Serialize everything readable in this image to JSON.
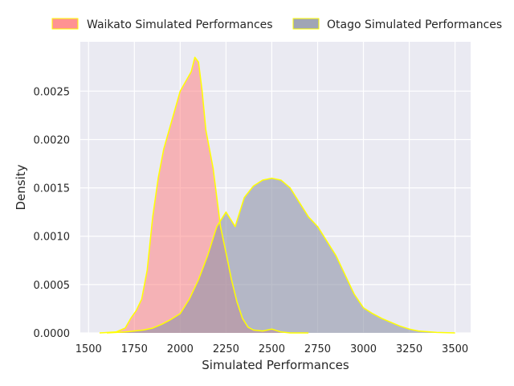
{
  "chart_data": {
    "type": "area",
    "title": "",
    "xlabel": "Simulated Performances",
    "ylabel": "Density",
    "xlim": [
      1455,
      3585
    ],
    "ylim": [
      0,
      0.00301
    ],
    "xticks": [
      1500,
      1750,
      2000,
      2250,
      2500,
      2750,
      3000,
      3250,
      3500
    ],
    "yticks": [
      0.0,
      0.0005,
      0.001,
      0.0015,
      0.002,
      0.0025
    ],
    "ytick_labels": [
      "0.0000",
      "0.0005",
      "0.0010",
      "0.0015",
      "0.0020",
      "0.0025"
    ],
    "grid": true,
    "legend_position": "top",
    "outline_color": "#ffff00",
    "background": "#eaeaf2",
    "series": [
      {
        "name": "Waikato Simulated Performances",
        "color": "#ff7f7f",
        "fill_opacity": 0.52,
        "x": [
          1560,
          1650,
          1700,
          1730,
          1760,
          1790,
          1820,
          1850,
          1880,
          1910,
          1940,
          1970,
          2000,
          2030,
          2060,
          2080,
          2100,
          2120,
          2140,
          2160,
          2180,
          2200,
          2220,
          2250,
          2280,
          2310,
          2340,
          2370,
          2400,
          2450,
          2500,
          2550,
          2600,
          2700
        ],
        "y": [
          0.0,
          1e-05,
          5e-05,
          0.00015,
          0.00023,
          0.00035,
          0.00065,
          0.0012,
          0.0016,
          0.0019,
          0.0021,
          0.0023,
          0.0025,
          0.0026,
          0.0027,
          0.00285,
          0.0028,
          0.0025,
          0.0021,
          0.0019,
          0.0017,
          0.0014,
          0.0011,
          0.00083,
          0.00055,
          0.00032,
          0.00015,
          6e-05,
          3e-05,
          2e-05,
          4e-05,
          1e-05,
          0.0,
          0.0
        ]
      },
      {
        "name": "Otago Simulated Performances",
        "color": "#8f95a8",
        "fill_opacity": 0.6,
        "x": [
          1600,
          1700,
          1800,
          1850,
          1900,
          1950,
          2000,
          2050,
          2100,
          2150,
          2200,
          2250,
          2300,
          2350,
          2400,
          2450,
          2500,
          2550,
          2600,
          2650,
          2700,
          2750,
          2800,
          2850,
          2900,
          2950,
          3000,
          3050,
          3100,
          3150,
          3200,
          3250,
          3300,
          3400,
          3500
        ],
        "y": [
          0.0,
          1e-05,
          3e-05,
          5e-05,
          9e-05,
          0.00014,
          0.0002,
          0.00035,
          0.00055,
          0.0008,
          0.0011,
          0.00125,
          0.0011,
          0.0014,
          0.00152,
          0.00158,
          0.0016,
          0.00158,
          0.0015,
          0.00135,
          0.0012,
          0.0011,
          0.00095,
          0.0008,
          0.0006,
          0.0004,
          0.00026,
          0.0002,
          0.00015,
          0.00011,
          7e-05,
          4e-05,
          2e-05,
          5e-06,
          0.0
        ]
      }
    ]
  }
}
